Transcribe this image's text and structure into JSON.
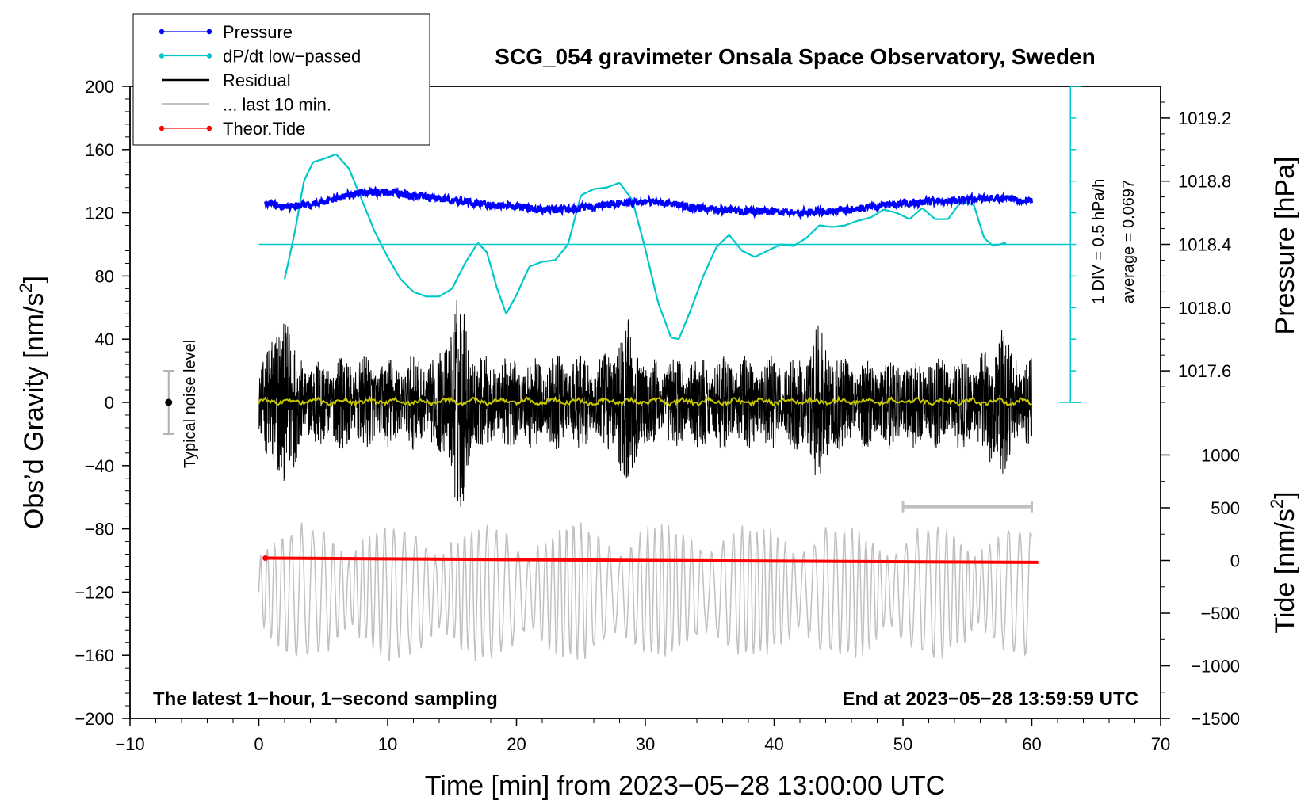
{
  "chart_data": {
    "type": "line",
    "title": "SCG_054 gravimeter Onsala Space Observatory, Sweden",
    "xlabel": "Time [min] from 2023−05−28 13:00:00 UTC",
    "ylabel_left": "Obs’d Gravity [nm/s²]",
    "ylabel_left_main": "Obs’d Gravity [nm/s",
    "ylabel_left_sup": "2",
    "ylabel_left_close": "]",
    "ylabel_pressure": "Pressure [hPa]",
    "ylabel_tide": "Tide [nm/s²]",
    "ylabel_tide_main": "Tide [nm/s",
    "ylabel_tide_sup": "2",
    "ylabel_tide_close": "]",
    "xlim": [
      -10,
      70
    ],
    "ylim": [
      -200,
      200
    ],
    "x_ticks": [
      -10,
      0,
      10,
      20,
      30,
      40,
      50,
      60,
      70
    ],
    "x_tick_labels": [
      "−10",
      "0",
      "10",
      "20",
      "30",
      "40",
      "50",
      "60",
      "70"
    ],
    "y_ticks": [
      -200,
      -160,
      -120,
      -80,
      -40,
      0,
      40,
      80,
      120,
      160,
      200
    ],
    "y_tick_labels": [
      "−200",
      "−160",
      "−120",
      "−80",
      "−40",
      "0",
      "40",
      "80",
      "120",
      "160",
      "200"
    ],
    "pressure_axis": {
      "ticks": [
        1017.6,
        1018.0,
        1018.4,
        1018.8,
        1019.2
      ],
      "labels": [
        "1017.6",
        "1018.0",
        "1018.4",
        "1018.8",
        "1019.2"
      ],
      "gravity_at_1018_4": 100,
      "gravity_per_hPa": 100
    },
    "tide_axis": {
      "ticks": [
        -1500,
        -1000,
        -500,
        0,
        500,
        1000
      ],
      "labels": [
        "−1500",
        "−1000",
        "−500",
        "0",
        "500",
        "1000"
      ],
      "gravity_at_0": -100,
      "gravity_per_unit": 0.0667
    },
    "legend": {
      "position": "top-left",
      "entries": [
        {
          "label": "Pressure",
          "color": "#0000ff",
          "marker": true
        },
        {
          "label": "dP/dt low−passed",
          "color": "#00c8c8",
          "marker": true
        },
        {
          "label": "Residual",
          "color": "#000000",
          "marker": false
        },
        {
          "label": "... last 10 min.",
          "color": "#c0c0c0",
          "marker": false
        },
        {
          "label": "Theor.Tide",
          "color": "#ff0000",
          "marker": true
        }
      ]
    },
    "noise_indicator": {
      "x": -7,
      "center": 0,
      "half_range": 20,
      "label": "Typical noise level"
    },
    "dpdt_scale": {
      "label_div": "1 DIV = 0.5 hPa/h",
      "label_avg": "average = 0.0697",
      "x": 63,
      "y_bottom": 0,
      "y_top": 200,
      "div_gravity": 20,
      "baseline_gravity": 100
    },
    "last10_bracket": {
      "x_start": 50,
      "x_end": 60,
      "y": -66
    },
    "footer_left": "The latest 1−hour, 1−second sampling",
    "footer_right": "End at 2023−05−28 13:59:59 UTC",
    "series": [
      {
        "name": "Pressure",
        "color": "#0000ff",
        "x": [
          0.5,
          2,
          4,
          6,
          8,
          10,
          12,
          14,
          16,
          18,
          20,
          22,
          24,
          26,
          28,
          30,
          32,
          34,
          36,
          38,
          40,
          42,
          44,
          46,
          48,
          50,
          52,
          54,
          56,
          58,
          60
        ],
        "y": [
          126,
          124,
          125,
          129,
          133,
          133,
          131,
          129,
          127,
          125,
          124,
          122,
          122,
          124,
          126,
          127,
          126,
          123,
          122,
          121,
          121,
          120,
          121,
          122,
          124,
          126,
          127,
          128,
          129,
          129,
          128
        ]
      },
      {
        "name": "dP/dt low−passed",
        "color": "#00c8c8",
        "x": [
          2,
          2.8,
          3.5,
          4.2,
          5,
          6,
          7,
          8,
          9,
          10,
          11,
          12,
          13,
          14,
          15,
          16,
          17,
          17.7,
          18.5,
          19.2,
          20,
          21,
          22,
          23,
          24,
          25,
          26,
          27,
          28,
          29,
          30,
          31,
          32,
          32.6,
          33.5,
          34.5,
          35.5,
          36.5,
          37.5,
          38.5,
          39.5,
          40.5,
          41.5,
          42.5,
          43.5,
          44.5,
          45.5,
          46.5,
          47.5,
          48.5,
          49.5,
          50.5,
          51.5,
          52.5,
          53.5,
          54.5,
          55.5,
          56.3,
          57,
          58
        ],
        "y": [
          78,
          108,
          140,
          152,
          154,
          157,
          148,
          128,
          108,
          92,
          78,
          70,
          67,
          67,
          72,
          88,
          101,
          95,
          72,
          56,
          68,
          86,
          89,
          90,
          100,
          131,
          135,
          136,
          139,
          128,
          97,
          63,
          41,
          40,
          58,
          80,
          98,
          106,
          96,
          92,
          96,
          100,
          99,
          104,
          112,
          111,
          112,
          115,
          117,
          122,
          120,
          116,
          123,
          116,
          116,
          127,
          125,
          104,
          99,
          101
        ]
      },
      {
        "name": "Residual",
        "color": "#000000",
        "x_range": [
          0,
          60
        ],
        "typical_amplitude": 30,
        "max": 75,
        "min": -84,
        "bursts": [
          {
            "x": 15.5,
            "amplitude": 70
          },
          {
            "x": 1.8,
            "amplitude": 62
          },
          {
            "x": 28.5,
            "amplitude": 55
          },
          {
            "x": 43.5,
            "amplitude": 50
          },
          {
            "x": 57.5,
            "amplitude": 52
          }
        ]
      },
      {
        "name": "... last 10 min.",
        "color": "#c0c0c0",
        "x_range": [
          0,
          60
        ],
        "y_center": -120,
        "typical_amplitude": 25,
        "max": -75,
        "min": -182
      },
      {
        "name": "Theor.Tide",
        "color": "#ff0000",
        "x": [
          0.5,
          15,
          30,
          45,
          60.5
        ],
        "y": [
          -98.5,
          -99.2,
          -100,
          -100.6,
          -101.2
        ]
      },
      {
        "name": "Residual low−passed",
        "color": "#c8c800",
        "x_range": [
          0,
          60
        ],
        "y_center": 0.5,
        "typical_amplitude": 2
      }
    ]
  }
}
